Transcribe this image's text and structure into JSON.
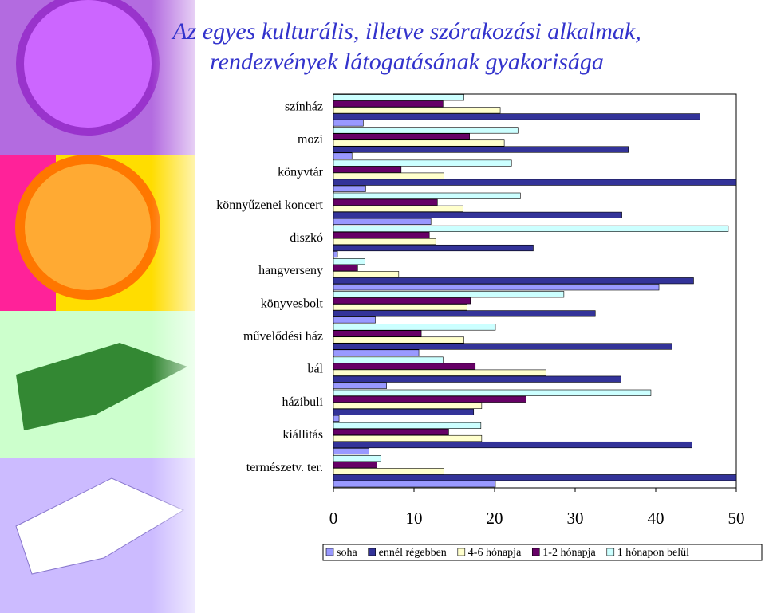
{
  "chart_data": {
    "type": "hbar",
    "title": [
      "Az egyes kulturális, illetve szórakozási alkalmak,",
      "rendezvények látogatásának gyakorisága"
    ],
    "categories": [
      "színház",
      "mozi",
      "könyvtár",
      "könnyűzenei koncert",
      "diszkó",
      "hangverseny",
      "könyvesbolt",
      "művelődési ház",
      "bál",
      "házibuli",
      "kiállítás",
      "természetv. ter."
    ],
    "series": [
      {
        "name": "soha",
        "color": "#9999ff",
        "values": [
          3.7,
          2.3,
          4.0,
          12.1,
          0.5,
          40.4,
          5.2,
          10.6,
          6.6,
          0.7,
          4.4,
          20.1
        ]
      },
      {
        "name": "ennél régebben",
        "color": "#333399",
        "values": [
          45.5,
          36.6,
          50,
          35.8,
          24.8,
          44.7,
          32.5,
          42.0,
          35.7,
          17.4,
          44.5,
          50
        ]
      },
      {
        "name": "4-6 hónapja",
        "color": "#ffffcc",
        "values": [
          20.7,
          21.2,
          13.7,
          16.1,
          12.7,
          8.1,
          16.6,
          16.2,
          26.4,
          18.4,
          18.4,
          13.7
        ]
      },
      {
        "name": "1-2 hónapja",
        "color": "#660066",
        "values": [
          13.6,
          16.9,
          8.4,
          12.9,
          11.9,
          3.0,
          17.0,
          10.9,
          17.6,
          23.9,
          14.3,
          5.4
        ]
      },
      {
        "name": "1 hónapon belül",
        "color": "#ccffff",
        "values": [
          16.2,
          22.9,
          22.1,
          23.2,
          49.0,
          3.9,
          28.6,
          20.1,
          13.6,
          39.4,
          18.3,
          5.9
        ]
      }
    ],
    "xlim": [
      0,
      50
    ],
    "xticks": [
      0,
      10,
      20,
      30,
      40,
      50
    ]
  }
}
